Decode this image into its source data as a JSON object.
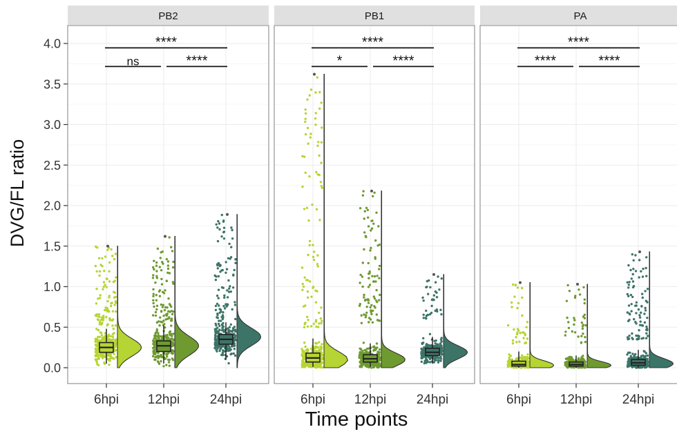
{
  "chart_data": {
    "type": "raincloud",
    "xlabel": "Time points",
    "ylabel": "DVG/FL ratio",
    "ylim": [
      0,
      4.0
    ],
    "y_ticks": [
      "0.0",
      "0.5",
      "1.0",
      "1.5",
      "2.0",
      "2.5",
      "3.0",
      "3.5",
      "4.0"
    ],
    "categories": [
      "6hpi",
      "12hpi",
      "24hpi"
    ],
    "colors": {
      "6hpi": "#b6d433",
      "12hpi": "#6f9a30",
      "24hpi": "#3d7468",
      "strip": "#e0e0e0",
      "grid": "#ebebeb",
      "panel_border": "#7f7f7f"
    },
    "panels": [
      {
        "name": "PB2",
        "groups": [
          {
            "x": "6hpi",
            "q1": 0.19,
            "median": 0.25,
            "q3": 0.31,
            "whisker_low": 0.05,
            "whisker_high": 0.48,
            "dense_max": 0.52,
            "max": 1.5,
            "density_peak": 0.25
          },
          {
            "x": "12hpi",
            "q1": 0.2,
            "median": 0.27,
            "q3": 0.33,
            "whisker_low": 0.05,
            "whisker_high": 0.52,
            "dense_max": 0.55,
            "max": 1.62,
            "density_peak": 0.27
          },
          {
            "x": "24hpi",
            "q1": 0.29,
            "median": 0.35,
            "q3": 0.41,
            "whisker_low": 0.1,
            "whisker_high": 0.56,
            "dense_max": 0.6,
            "max": 1.89,
            "density_peak": 0.38
          }
        ],
        "comparisons": [
          {
            "from": "6hpi",
            "to": "12hpi",
            "y": 3.75,
            "label": "ns"
          },
          {
            "from": "12hpi",
            "to": "24hpi",
            "y": 3.75,
            "label": "****"
          },
          {
            "from": "6hpi",
            "to": "24hpi",
            "y": 3.98,
            "label": "****"
          }
        ]
      },
      {
        "name": "PB1",
        "groups": [
          {
            "x": "6hpi",
            "q1": 0.07,
            "median": 0.12,
            "q3": 0.18,
            "whisker_low": 0.01,
            "whisker_high": 0.36,
            "dense_max": 0.5,
            "max": 3.62,
            "density_peak": 0.1
          },
          {
            "x": "12hpi",
            "q1": 0.07,
            "median": 0.11,
            "q3": 0.16,
            "whisker_low": 0.01,
            "whisker_high": 0.3,
            "dense_max": 0.55,
            "max": 2.18,
            "density_peak": 0.1
          },
          {
            "x": "24hpi",
            "q1": 0.15,
            "median": 0.19,
            "q3": 0.24,
            "whisker_low": 0.05,
            "whisker_high": 0.38,
            "dense_max": 0.6,
            "max": 1.15,
            "density_peak": 0.19
          }
        ],
        "comparisons": [
          {
            "from": "6hpi",
            "to": "12hpi",
            "y": 3.75,
            "label": "*"
          },
          {
            "from": "12hpi",
            "to": "24hpi",
            "y": 3.75,
            "label": "****"
          },
          {
            "from": "6hpi",
            "to": "24hpi",
            "y": 3.98,
            "label": "****"
          }
        ]
      },
      {
        "name": "PA",
        "groups": [
          {
            "x": "6hpi",
            "q1": 0.02,
            "median": 0.04,
            "q3": 0.08,
            "whisker_low": 0.0,
            "whisker_high": 0.2,
            "dense_max": 0.3,
            "max": 1.05,
            "density_peak": 0.03
          },
          {
            "x": "12hpi",
            "q1": 0.02,
            "median": 0.04,
            "q3": 0.07,
            "whisker_low": 0.0,
            "whisker_high": 0.15,
            "dense_max": 0.3,
            "max": 1.03,
            "density_peak": 0.03
          },
          {
            "x": "24hpi",
            "q1": 0.03,
            "median": 0.06,
            "q3": 0.1,
            "whisker_low": 0.0,
            "whisker_high": 0.22,
            "dense_max": 0.35,
            "max": 1.43,
            "density_peak": 0.05
          }
        ],
        "comparisons": [
          {
            "from": "6hpi",
            "to": "12hpi",
            "y": 3.75,
            "label": "****"
          },
          {
            "from": "12hpi",
            "to": "24hpi",
            "y": 3.75,
            "label": "****"
          },
          {
            "from": "6hpi",
            "to": "24hpi",
            "y": 3.98,
            "label": "****"
          }
        ]
      }
    ]
  }
}
